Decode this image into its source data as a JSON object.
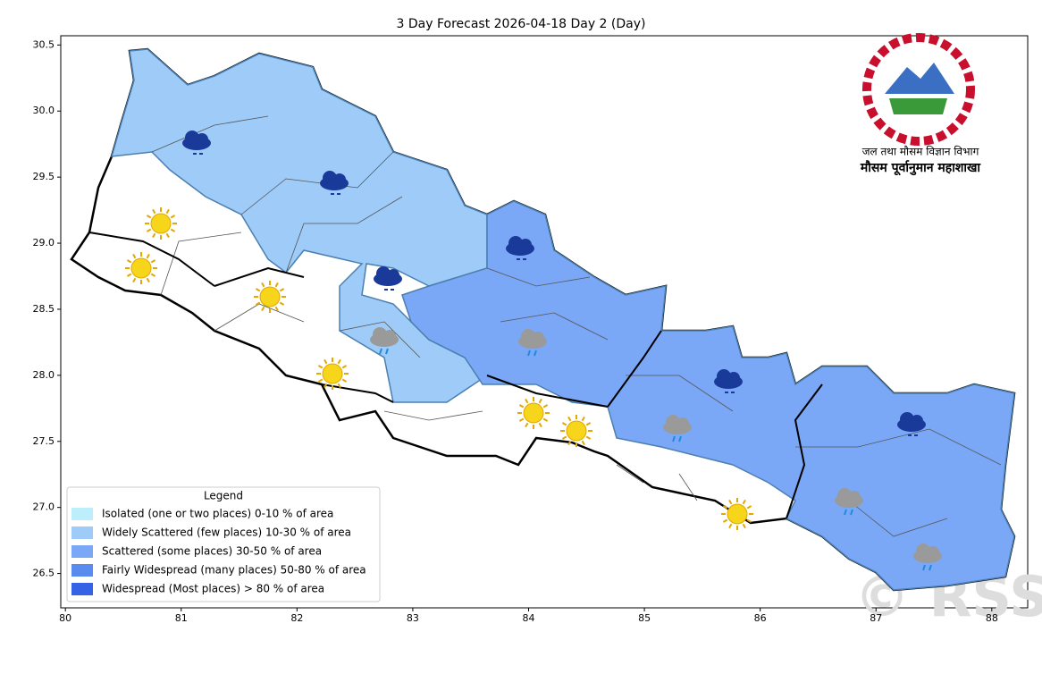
{
  "map": {
    "title": "3 Day Forecast 2026-04-18 Day 2 (Day)",
    "xlim": [
      79.96,
      88.31
    ],
    "ylim": [
      26.24,
      30.57
    ],
    "xticks": [
      80,
      81,
      82,
      83,
      84,
      85,
      86,
      87,
      88
    ],
    "yticks": [
      26.5,
      {
        "value": 27,
        "label": "27.0"
      },
      27.5,
      {
        "value": 28,
        "label": "28.0"
      },
      28.5,
      {
        "value": 29,
        "label": "29.0"
      },
      29.5,
      {
        "value": 30,
        "label": "30.0"
      },
      30.5
    ],
    "legend": {
      "title": "Legend",
      "entries": [
        {
          "label": "Isolated (one or two places)  0-10 % of area",
          "color": "#bdeefc"
        },
        {
          "label": "Widely Scattered (few places)  10-30 % of area",
          "color": "#9fcbf8"
        },
        {
          "label": "Scattered (some places)  30-50 % of area",
          "color": "#7ba8f6"
        },
        {
          "label": "Fairly Widespread (many places)  50-80 % of area",
          "color": "#5a8cf0"
        },
        {
          "label": "Widespread (Most places) > 80 % of area",
          "color": "#3563e6"
        }
      ]
    },
    "logo_text": [
      "जल तथा मौसम विज्ञान विभाग",
      "मौसम पूर्वानुमान महाशाखा"
    ],
    "watermark": "© RSS"
  }
}
